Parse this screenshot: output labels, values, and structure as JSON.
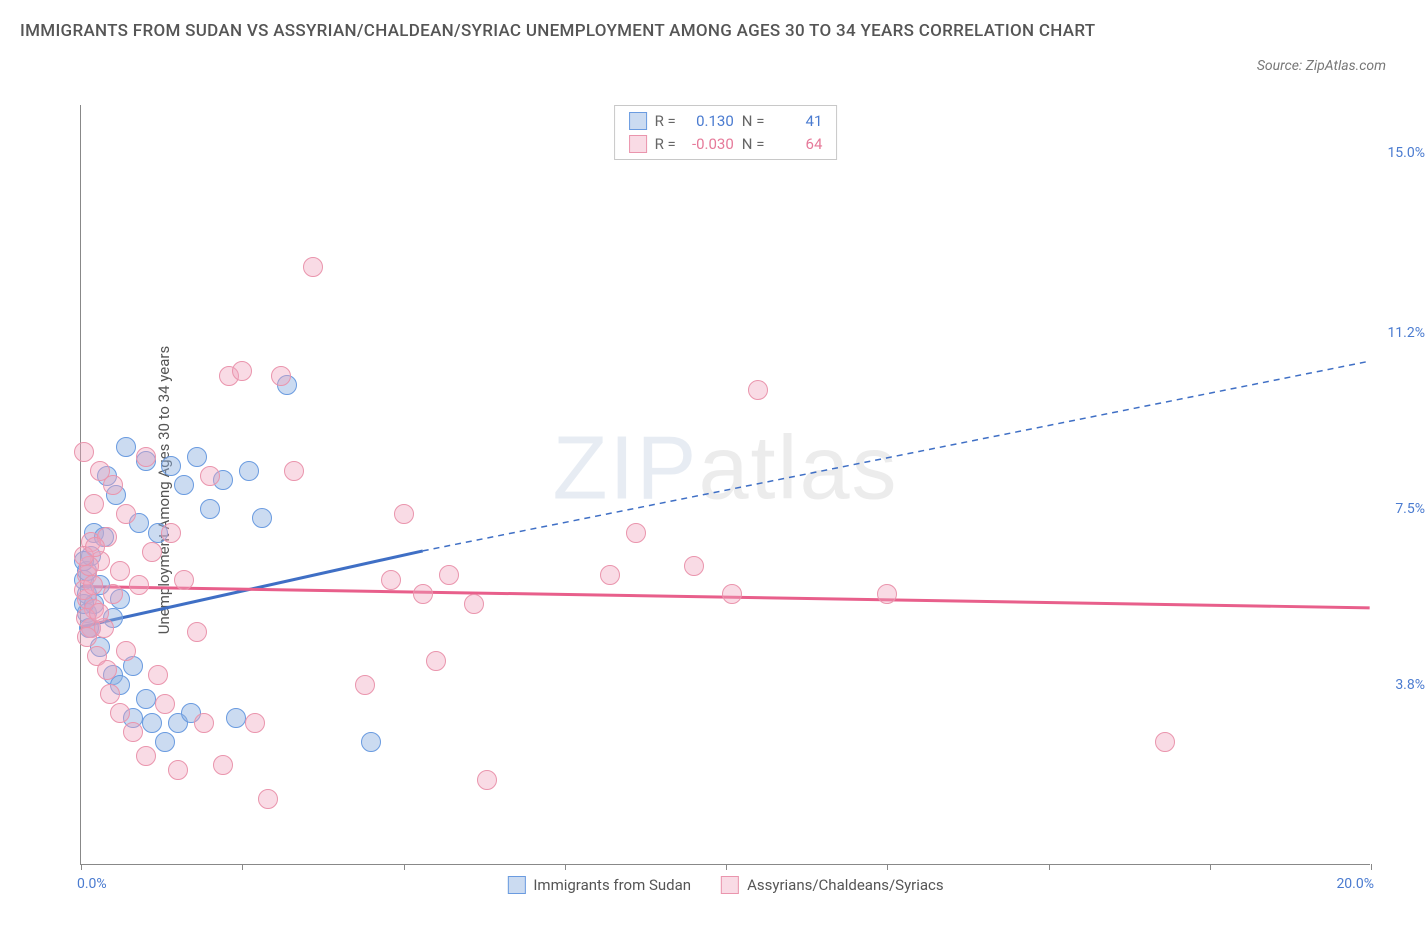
{
  "header": {
    "title": "IMMIGRANTS FROM SUDAN VS ASSYRIAN/CHALDEAN/SYRIAC UNEMPLOYMENT AMONG AGES 30 TO 34 YEARS CORRELATION CHART",
    "source": "Source: ZipAtlas.com"
  },
  "chart": {
    "type": "scatter",
    "ylabel": "Unemployment Among Ages 30 to 34 years",
    "xlim": [
      0,
      20
    ],
    "ylim": [
      0,
      16
    ],
    "xticks": [
      0,
      2.5,
      5,
      7.5,
      10,
      12.5,
      15,
      17.5,
      20
    ],
    "yticks": [
      {
        "v": 3.8,
        "label": "3.8%"
      },
      {
        "v": 7.5,
        "label": "7.5%"
      },
      {
        "v": 11.2,
        "label": "11.2%"
      },
      {
        "v": 15.0,
        "label": "15.0%"
      }
    ],
    "xaxis_labels": {
      "min": "0.0%",
      "max": "20.0%"
    },
    "watermark": {
      "zip": "ZIP",
      "atlas": "atlas"
    },
    "point_radius": 10,
    "series": [
      {
        "id": "sudan",
        "label": "Immigrants from Sudan",
        "color_stroke": "#6a9be0",
        "color_fill": "rgba(140,175,225,0.45)",
        "r_value": "0.130",
        "n_value": "41",
        "trend": {
          "x1": 0,
          "y1": 5.0,
          "x2": 5.3,
          "y2": 6.6,
          "x2_dash": 20,
          "y2_dash": 10.6,
          "stroke": "#3f6fc5",
          "width": 3
        },
        "points": [
          [
            0.05,
            6.0
          ],
          [
            0.1,
            5.7
          ],
          [
            0.1,
            5.3
          ],
          [
            0.1,
            6.2
          ],
          [
            0.15,
            5.0
          ],
          [
            0.15,
            6.5
          ],
          [
            0.2,
            5.5
          ],
          [
            0.2,
            7.0
          ],
          [
            0.3,
            4.6
          ],
          [
            0.3,
            5.9
          ],
          [
            0.35,
            6.9
          ],
          [
            0.4,
            8.2
          ],
          [
            0.5,
            4.0
          ],
          [
            0.5,
            5.2
          ],
          [
            0.55,
            7.8
          ],
          [
            0.6,
            3.8
          ],
          [
            0.6,
            5.6
          ],
          [
            0.7,
            8.8
          ],
          [
            0.8,
            3.1
          ],
          [
            0.8,
            4.2
          ],
          [
            0.9,
            7.2
          ],
          [
            1.0,
            3.5
          ],
          [
            1.0,
            8.5
          ],
          [
            1.1,
            3.0
          ],
          [
            1.2,
            7.0
          ],
          [
            1.3,
            2.6
          ],
          [
            1.4,
            8.4
          ],
          [
            1.5,
            3.0
          ],
          [
            1.6,
            8.0
          ],
          [
            1.7,
            3.2
          ],
          [
            1.8,
            8.6
          ],
          [
            2.0,
            7.5
          ],
          [
            2.2,
            8.1
          ],
          [
            2.4,
            3.1
          ],
          [
            2.6,
            8.3
          ],
          [
            2.8,
            7.3
          ],
          [
            3.2,
            10.1
          ],
          [
            4.5,
            2.6
          ],
          [
            0.05,
            5.5
          ],
          [
            0.05,
            6.4
          ],
          [
            0.12,
            5.0
          ]
        ]
      },
      {
        "id": "assyrian",
        "label": "Assyrians/Chaldeans/Syriacs",
        "color_stroke": "#ea95ad",
        "color_fill": "rgba(240,165,190,0.40)",
        "r_value": "-0.030",
        "n_value": "64",
        "trend": {
          "x1": 0,
          "y1": 5.85,
          "x2": 20,
          "y2": 5.4,
          "stroke": "#e85f8b",
          "width": 3
        },
        "points": [
          [
            0.05,
            8.7
          ],
          [
            0.1,
            5.6
          ],
          [
            0.1,
            6.1
          ],
          [
            0.15,
            5.0
          ],
          [
            0.15,
            6.8
          ],
          [
            0.2,
            5.4
          ],
          [
            0.2,
            7.6
          ],
          [
            0.25,
            4.4
          ],
          [
            0.3,
            6.4
          ],
          [
            0.3,
            8.3
          ],
          [
            0.35,
            5.0
          ],
          [
            0.4,
            4.1
          ],
          [
            0.4,
            6.9
          ],
          [
            0.45,
            3.6
          ],
          [
            0.5,
            5.7
          ],
          [
            0.5,
            8.0
          ],
          [
            0.6,
            3.2
          ],
          [
            0.6,
            6.2
          ],
          [
            0.7,
            4.5
          ],
          [
            0.7,
            7.4
          ],
          [
            0.8,
            2.8
          ],
          [
            0.9,
            5.9
          ],
          [
            1.0,
            8.6
          ],
          [
            1.0,
            2.3
          ],
          [
            1.1,
            6.6
          ],
          [
            1.2,
            4.0
          ],
          [
            1.3,
            3.4
          ],
          [
            1.4,
            7.0
          ],
          [
            1.5,
            2.0
          ],
          [
            1.6,
            6.0
          ],
          [
            1.8,
            4.9
          ],
          [
            1.9,
            3.0
          ],
          [
            2.0,
            8.2
          ],
          [
            2.2,
            2.1
          ],
          [
            2.3,
            10.3
          ],
          [
            2.5,
            10.4
          ],
          [
            2.7,
            3.0
          ],
          [
            2.9,
            1.4
          ],
          [
            3.1,
            10.3
          ],
          [
            3.3,
            8.3
          ],
          [
            3.6,
            12.6
          ],
          [
            4.4,
            3.8
          ],
          [
            4.8,
            6.0
          ],
          [
            5.0,
            7.4
          ],
          [
            5.3,
            5.7
          ],
          [
            5.5,
            4.3
          ],
          [
            5.7,
            6.1
          ],
          [
            6.1,
            5.5
          ],
          [
            6.3,
            1.8
          ],
          [
            8.2,
            6.1
          ],
          [
            8.6,
            7.0
          ],
          [
            9.5,
            6.3
          ],
          [
            10.1,
            5.7
          ],
          [
            10.5,
            10.0
          ],
          [
            12.5,
            5.7
          ],
          [
            16.8,
            2.6
          ],
          [
            0.05,
            5.8
          ],
          [
            0.08,
            5.2
          ],
          [
            0.1,
            4.8
          ],
          [
            0.12,
            6.3
          ],
          [
            0.05,
            6.5
          ],
          [
            0.18,
            5.9
          ],
          [
            0.22,
            6.7
          ],
          [
            0.28,
            5.3
          ]
        ]
      }
    ],
    "legend_top": {
      "r_label": "R =",
      "n_label": "N ="
    }
  }
}
